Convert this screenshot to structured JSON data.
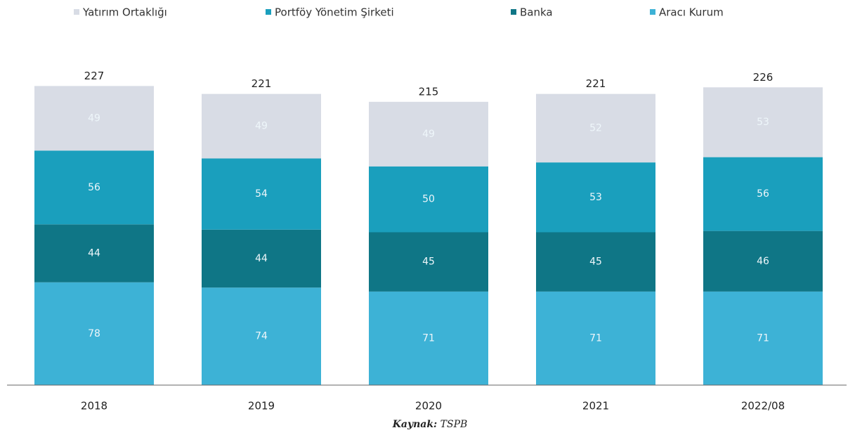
{
  "chart_data": {
    "type": "stacked_bar",
    "categories": [
      "2018",
      "2019",
      "2020",
      "2021",
      "2022/08"
    ],
    "series": [
      {
        "name": "Yatırım Ortaklığı",
        "color": "#d8dce5",
        "values": [
          49,
          49,
          49,
          52,
          53
        ]
      },
      {
        "name": "Portföy Yönetim Şirketi",
        "color": "#1a9fbd",
        "values": [
          56,
          54,
          50,
          53,
          56
        ]
      },
      {
        "name": "Banka",
        "color": "#0f7686",
        "values": [
          44,
          44,
          45,
          45,
          46
        ]
      },
      {
        "name": "Aracı Kurum",
        "color": "#3db2d6",
        "values": [
          78,
          74,
          71,
          71,
          71
        ]
      }
    ],
    "total_labels": [
      "227",
      "221",
      "215",
      "221",
      "226"
    ],
    "ylim": [
      0,
      240
    ],
    "source_label": "Kaynak:",
    "source": "TSPB"
  }
}
